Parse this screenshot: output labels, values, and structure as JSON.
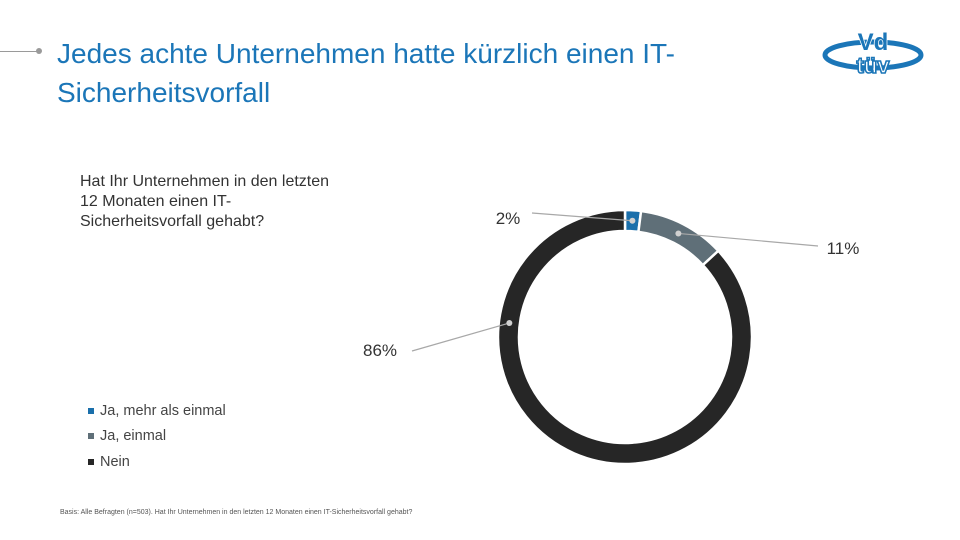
{
  "title": "Jedes achte Unternehmen hatte kürzlich einen IT-Sicherheitsvorfall",
  "question": "Hat Ihr Unternehmen in den letzten 12 Monaten einen IT-Sicherheitsvorfall gehabt?",
  "logo": {
    "text_top": "Vd",
    "text_bottom": "tüv",
    "color": "#1b76b8"
  },
  "footnote": "Basis: Alle Befragten (n=503). Hat Ihr Unternehmen in den letzten 12 Monaten einen IT-Sicherheitsvorfall gehabt?",
  "chart_data": {
    "type": "pie",
    "donut": true,
    "categories": [
      "Ja, mehr als einmal",
      "Ja, einmal",
      "Nein"
    ],
    "values": [
      2,
      11,
      86
    ],
    "labels": [
      "2%",
      "11%",
      "86%"
    ],
    "colors": [
      "#1a6fab",
      "#5f6f78",
      "#262626"
    ],
    "legend_position": "left-bottom"
  }
}
